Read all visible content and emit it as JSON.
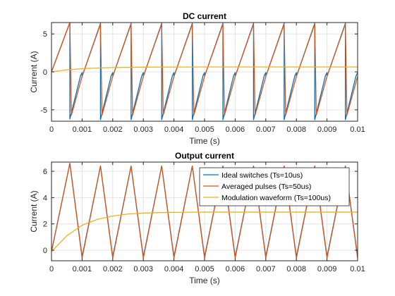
{
  "chart_data": [
    {
      "type": "line",
      "title": "DC current",
      "xlabel": "Time (s)",
      "ylabel": "Current (A)",
      "xlim": [
        0,
        0.01
      ],
      "ylim": [
        -6.5,
        6.5
      ],
      "xticks": [
        0,
        0.001,
        0.002,
        0.003,
        0.004,
        0.005,
        0.006,
        0.007,
        0.008,
        0.009,
        0.01
      ],
      "xtick_labels": [
        "0",
        "0.001",
        "0.002",
        "0.003",
        "0.004",
        "0.005",
        "0.006",
        "0.007",
        "0.008",
        "0.009",
        "0.01"
      ],
      "yticks": [
        -5,
        0,
        5
      ],
      "ytick_labels": [
        "-5",
        "0",
        "5"
      ],
      "grid": true,
      "series": [
        {
          "color": "#0072BD",
          "x": [
            0,
            0.0006,
            0.0006,
            0.00095,
            0.001,
            0.001,
            0.0016,
            0.0016,
            0.00195,
            0.002,
            0.002,
            0.0026,
            0.0026,
            0.00295,
            0.003,
            0.003,
            0.0036,
            0.0036,
            0.00395,
            0.004,
            0.004,
            0.0046,
            0.0046,
            0.00495,
            0.005,
            0.005,
            0.0056,
            0.0056,
            0.00595,
            0.006,
            0.006,
            0.0066,
            0.0066,
            0.00695,
            0.007,
            0.007,
            0.0076,
            0.0076,
            0.00795,
            0.008,
            0.008,
            0.0086,
            0.0086,
            0.00895,
            0.009,
            0.009,
            0.0096,
            0.0096,
            0.00995,
            0.01
          ],
          "y": [
            0,
            6.5,
            -6.2,
            -0.5,
            -0.1,
            -0.6,
            6.4,
            -6.3,
            -0.5,
            -0.1,
            -0.6,
            6.4,
            -6.3,
            -0.5,
            -0.1,
            -0.6,
            6.4,
            -6.3,
            -0.5,
            -0.1,
            -0.6,
            6.4,
            -6.3,
            -0.5,
            -0.1,
            -0.6,
            6.4,
            -6.3,
            -0.5,
            -0.1,
            -0.6,
            6.4,
            -6.3,
            -0.5,
            -0.1,
            -0.6,
            6.4,
            -6.3,
            -0.5,
            -0.1,
            -0.6,
            6.4,
            -6.3,
            -0.5,
            -0.1,
            -0.6,
            6.4,
            -6.3,
            -0.5,
            -0.1
          ]
        },
        {
          "color": "#D95319",
          "x": [
            0,
            0.0006,
            0.00065,
            0.001,
            0.0016,
            0.00165,
            0.002,
            0.0026,
            0.00265,
            0.003,
            0.0036,
            0.00365,
            0.004,
            0.0046,
            0.00465,
            0.005,
            0.0056,
            0.00565,
            0.006,
            0.0066,
            0.00665,
            0.007,
            0.0076,
            0.00765,
            0.008,
            0.0086,
            0.00865,
            0.009,
            0.0096,
            0.00965,
            0.01
          ],
          "y": [
            0,
            6.5,
            -5.7,
            -0.6,
            6.3,
            -5.7,
            -0.6,
            6.3,
            -5.7,
            -0.6,
            6.3,
            -5.7,
            -0.6,
            6.3,
            -5.7,
            -0.6,
            6.3,
            -5.7,
            -0.6,
            6.3,
            -5.7,
            -0.6,
            6.3,
            -5.7,
            -0.6,
            6.3,
            -5.7,
            -0.6,
            6.3,
            -5.7,
            -0.6
          ]
        },
        {
          "color": "#EDB120",
          "x": [
            0,
            0.0005,
            0.001,
            0.0015,
            0.002,
            0.0025,
            0.003,
            0.004,
            0.005,
            0.006,
            0.007,
            0.008,
            0.009,
            0.01
          ],
          "y": [
            0,
            0.27,
            0.42,
            0.51,
            0.57,
            0.6,
            0.62,
            0.64,
            0.65,
            0.65,
            0.65,
            0.65,
            0.65,
            0.65
          ]
        }
      ]
    },
    {
      "type": "line",
      "title": "Output current",
      "xlabel": "Time (s)",
      "ylabel": "Current (A)",
      "xlim": [
        0,
        0.01
      ],
      "ylim": [
        -0.8,
        6.7
      ],
      "xticks": [
        0,
        0.001,
        0.002,
        0.003,
        0.004,
        0.005,
        0.006,
        0.007,
        0.008,
        0.009,
        0.01
      ],
      "xtick_labels": [
        "0",
        "0.001",
        "0.002",
        "0.003",
        "0.004",
        "0.005",
        "0.006",
        "0.007",
        "0.008",
        "0.009",
        "0.01"
      ],
      "yticks": [
        0,
        2,
        4,
        6
      ],
      "ytick_labels": [
        "0",
        "2",
        "4",
        "6"
      ],
      "grid": true,
      "legend": {
        "placement": "top-right",
        "entries": [
          {
            "label": "Ideal switches (Ts=10us)",
            "color": "#0072BD"
          },
          {
            "label": "Averaged pulses (Ts=50us)",
            "color": "#D95319"
          },
          {
            "label": "Modulation waveform (Ts=100us)",
            "color": "#EDB120"
          }
        ]
      },
      "series": [
        {
          "color": "#0072BD",
          "x": [
            0,
            0.0006,
            0.001,
            0.0016,
            0.002,
            0.0026,
            0.003,
            0.0036,
            0.004,
            0.0046,
            0.005,
            0.0056,
            0.006,
            0.0066,
            0.007,
            0.0076,
            0.008,
            0.0086,
            0.009,
            0.0096,
            0.01
          ],
          "y": [
            -0.1,
            6.6,
            -0.5,
            6.4,
            -0.5,
            6.4,
            -0.5,
            6.4,
            -0.5,
            6.4,
            -0.5,
            6.4,
            -0.5,
            6.4,
            -0.5,
            6.4,
            -0.5,
            6.4,
            -0.5,
            6.4,
            -0.5
          ]
        },
        {
          "color": "#D95319",
          "x": [
            0,
            0.0006,
            0.001,
            0.0016,
            0.002,
            0.0026,
            0.003,
            0.0036,
            0.004,
            0.0046,
            0.005,
            0.0056,
            0.006,
            0.0066,
            0.007,
            0.0076,
            0.008,
            0.0086,
            0.009,
            0.0096,
            0.01
          ],
          "y": [
            -0.1,
            6.6,
            -0.6,
            6.4,
            -0.6,
            6.4,
            -0.6,
            6.4,
            -0.6,
            6.4,
            -0.6,
            6.4,
            -0.6,
            6.4,
            -0.6,
            6.4,
            -0.6,
            6.4,
            -0.6,
            6.4,
            -0.6
          ]
        },
        {
          "color": "#EDB120",
          "x": [
            0,
            0.0005,
            0.001,
            0.0015,
            0.002,
            0.0025,
            0.003,
            0.0035,
            0.004,
            0.005,
            0.006,
            0.007,
            0.008,
            0.009,
            0.01
          ],
          "y": [
            -0.1,
            1.1,
            1.9,
            2.35,
            2.6,
            2.75,
            2.82,
            2.86,
            2.88,
            2.9,
            2.9,
            2.9,
            2.9,
            2.9,
            2.9
          ]
        }
      ]
    }
  ]
}
